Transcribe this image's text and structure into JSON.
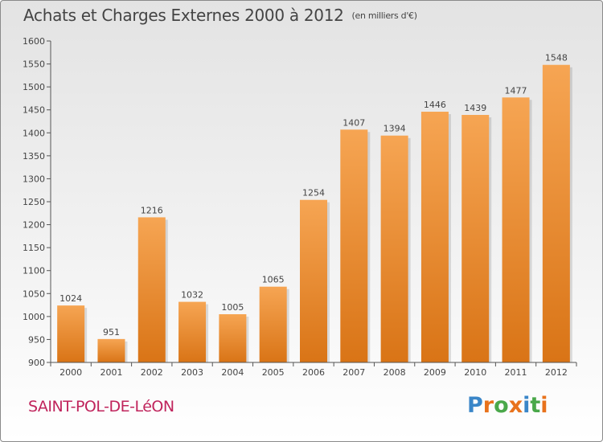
{
  "header": {
    "title": "Achats et Charges Externes 2000 à 2012",
    "unit": "(en milliers d'€)"
  },
  "footer": {
    "town": "SAINT-POL-DE-LéON",
    "brand": "Proxiti"
  },
  "colors": {
    "bar_light": "#f6a553",
    "bar_dark": "#d97416",
    "text": "#444444",
    "town": "#c0245c",
    "logo": [
      "#3a86c8",
      "#e8721c",
      "#4aa84a",
      "#e8721c",
      "#3a86c8",
      "#4aa84a",
      "#e8721c"
    ]
  },
  "chart_data": {
    "type": "bar",
    "title": "Achats et Charges Externes 2000 à 2012",
    "subtitle": "(en milliers d'€)",
    "xlabel": "",
    "ylabel": "",
    "categories": [
      "2000",
      "2001",
      "2002",
      "2003",
      "2004",
      "2005",
      "2006",
      "2007",
      "2008",
      "2009",
      "2010",
      "2011",
      "2012"
    ],
    "values": [
      1024,
      951,
      1216,
      1032,
      1005,
      1065,
      1254,
      1407,
      1394,
      1446,
      1439,
      1477,
      1548
    ],
    "ylim": [
      900,
      1600
    ],
    "yticks": [
      900,
      950,
      1000,
      1050,
      1100,
      1150,
      1200,
      1250,
      1300,
      1350,
      1400,
      1450,
      1500,
      1550,
      1600
    ],
    "grid": false,
    "legend": "none"
  }
}
